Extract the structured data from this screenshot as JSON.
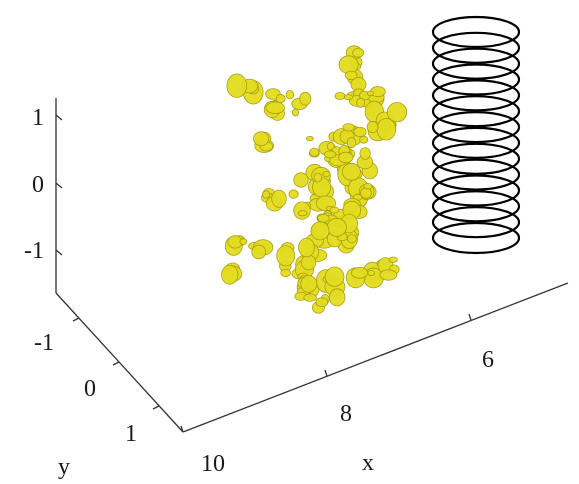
{
  "chart_data": {
    "type": "isosurface-3d",
    "title": "",
    "axes": {
      "x": {
        "label": "x",
        "ticks": [
          "10",
          "8",
          "6"
        ]
      },
      "y": {
        "label": "y",
        "ticks": [
          "-1",
          "0",
          "1"
        ]
      },
      "z": {
        "label": "",
        "ticks": [
          "1",
          "0",
          "-1"
        ]
      }
    },
    "isosurface": {
      "color": "#e3dc1f"
    },
    "coil": {
      "color": "#000000",
      "ring_count": 14
    },
    "grid": false,
    "legend": "none"
  }
}
